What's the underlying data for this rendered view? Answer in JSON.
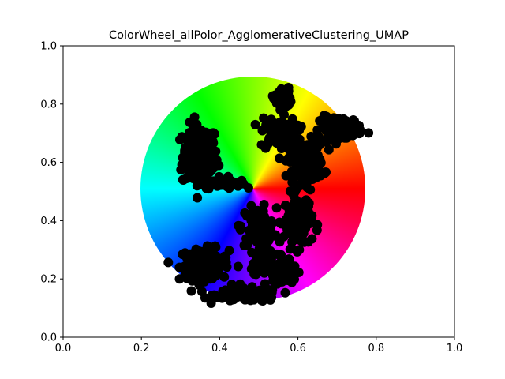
{
  "chart_data": {
    "type": "scatter",
    "title": "ColorWheel_allPolor_AgglomerativeClustering_UMAP",
    "xlabel": "",
    "ylabel": "",
    "xlim": [
      0,
      1
    ],
    "ylim": [
      0,
      1
    ],
    "x_ticks": [
      "0.0",
      "0.2",
      "0.4",
      "0.6",
      "0.8",
      "1.0"
    ],
    "y_ticks": [
      "0.0",
      "0.2",
      "0.4",
      "0.6",
      "0.8",
      "1.0"
    ],
    "grid": false,
    "legend": "none",
    "background": {
      "type": "hue-color-wheel",
      "center": [
        0.485,
        0.51
      ],
      "radius": 0.385,
      "hue_start": "red at 0 degrees (east), counter-clockwise through yellow, green, cyan, blue, magenta"
    },
    "marker_color": "#000000",
    "clusters": [
      {
        "cx": 0.35,
        "cy": 0.62,
        "spread": [
          0.05,
          0.12
        ],
        "count": 170
      },
      {
        "cx": 0.4,
        "cy": 0.53,
        "spread": [
          0.06,
          0.02
        ],
        "count": 50
      },
      {
        "cx": 0.36,
        "cy": 0.25,
        "spread": [
          0.07,
          0.06
        ],
        "count": 130
      },
      {
        "cx": 0.47,
        "cy": 0.145,
        "spread": [
          0.09,
          0.025
        ],
        "count": 140
      },
      {
        "cx": 0.5,
        "cy": 0.38,
        "spread": [
          0.05,
          0.07
        ],
        "count": 110
      },
      {
        "cx": 0.52,
        "cy": 0.26,
        "spread": [
          0.05,
          0.06
        ],
        "count": 70
      },
      {
        "cx": 0.57,
        "cy": 0.22,
        "spread": [
          0.03,
          0.05
        ],
        "count": 40
      },
      {
        "cx": 0.55,
        "cy": 0.7,
        "spread": [
          0.05,
          0.06
        ],
        "count": 90
      },
      {
        "cx": 0.56,
        "cy": 0.82,
        "spread": [
          0.025,
          0.04
        ],
        "count": 40
      },
      {
        "cx": 0.62,
        "cy": 0.6,
        "spread": [
          0.05,
          0.08
        ],
        "count": 150
      },
      {
        "cx": 0.71,
        "cy": 0.72,
        "spread": [
          0.06,
          0.04
        ],
        "count": 110
      },
      {
        "cx": 0.6,
        "cy": 0.4,
        "spread": [
          0.04,
          0.1
        ],
        "count": 110
      }
    ]
  }
}
